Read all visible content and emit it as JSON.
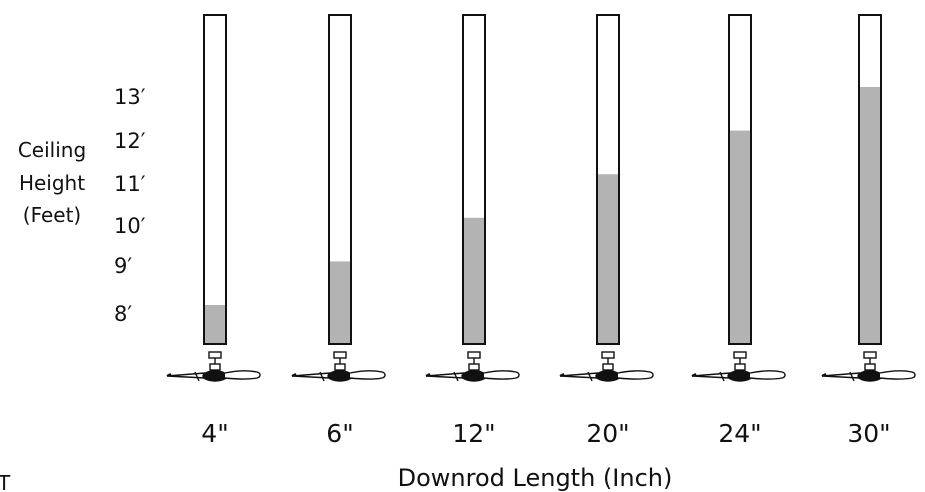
{
  "chart_data": {
    "type": "bar",
    "ylabel_lines": [
      "Ceiling",
      "Height",
      "(Feet)"
    ],
    "xlabel": "Downrod Length (Inch)",
    "y_ticks": [
      "8′",
      "9′",
      "10′",
      "11′",
      "12′",
      "13′"
    ],
    "categories": [
      "4\"",
      "6\"",
      "12\"",
      "20\"",
      "24\"",
      "30\""
    ],
    "values": [
      8,
      9,
      10,
      11,
      12,
      13
    ],
    "ylim": [
      7,
      14.5
    ],
    "grid": false,
    "colors": {
      "fill": "#b3b3b3",
      "outline": "#111111",
      "empty": "#ffffff"
    },
    "icon": "ceiling-fan-icon"
  },
  "stray_text": "T"
}
